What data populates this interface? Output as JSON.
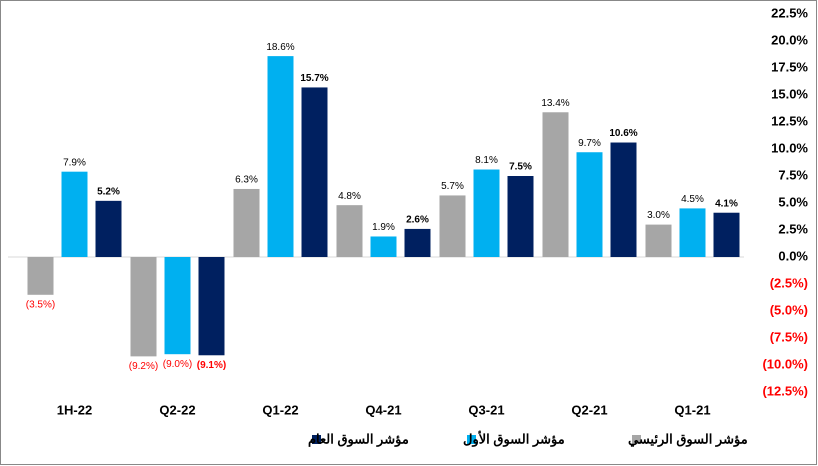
{
  "chart_data": {
    "type": "bar",
    "categories": [
      "1H-22",
      "Q2-22",
      "Q1-22",
      "Q4-21",
      "Q3-21",
      "Q2-21",
      "Q1-21"
    ],
    "series": [
      {
        "name": "مؤشر السوق الرئيسي",
        "color": "#a6a6a6",
        "values": [
          -3.5,
          -9.2,
          6.3,
          4.8,
          5.7,
          13.4,
          3.0
        ],
        "value_labels": [
          "(3.5%)",
          "(9.2%)",
          "6.3%",
          "4.8%",
          "5.7%",
          "13.4%",
          "3.0%"
        ]
      },
      {
        "name": "مؤشر السوق الأول",
        "color": "#00b0f0",
        "values": [
          7.9,
          -9.0,
          18.6,
          1.9,
          8.1,
          9.7,
          4.5
        ],
        "value_labels": [
          "7.9%",
          "(9.0%)",
          "18.6%",
          "1.9%",
          "8.1%",
          "9.7%",
          "4.5%"
        ]
      },
      {
        "name": "مؤشر السوق العام",
        "color": "#002060",
        "values": [
          5.2,
          -9.1,
          15.7,
          2.6,
          7.5,
          10.6,
          4.1
        ],
        "value_labels": [
          "5.2%",
          "(9.1%)",
          "15.7%",
          "2.6%",
          "7.5%",
          "10.6%",
          "4.1%"
        ]
      }
    ],
    "ylim": [
      -12.5,
      22.5
    ],
    "yticks": [
      {
        "value": 22.5,
        "label": "22.5%"
      },
      {
        "value": 20,
        "label": "20.0%"
      },
      {
        "value": 17.5,
        "label": "17.5%"
      },
      {
        "value": 15,
        "label": "15.0%"
      },
      {
        "value": 12.5,
        "label": "12.5%"
      },
      {
        "value": 10,
        "label": "10.0%"
      },
      {
        "value": 7.5,
        "label": "7.5%"
      },
      {
        "value": 5,
        "label": "5.0%"
      },
      {
        "value": 2.5,
        "label": "2.5%"
      },
      {
        "value": 0,
        "label": "0.0%"
      },
      {
        "value": -2.5,
        "label": "(2.5%)"
      },
      {
        "value": -5,
        "label": "(5.0%)"
      },
      {
        "value": -7.5,
        "label": "(7.5%)"
      },
      {
        "value": -10,
        "label": "(10.0%)"
      },
      {
        "value": -12.5,
        "label": "(12.5%)"
      }
    ],
    "negative_color": "#ff0000",
    "legend": "bottom"
  }
}
